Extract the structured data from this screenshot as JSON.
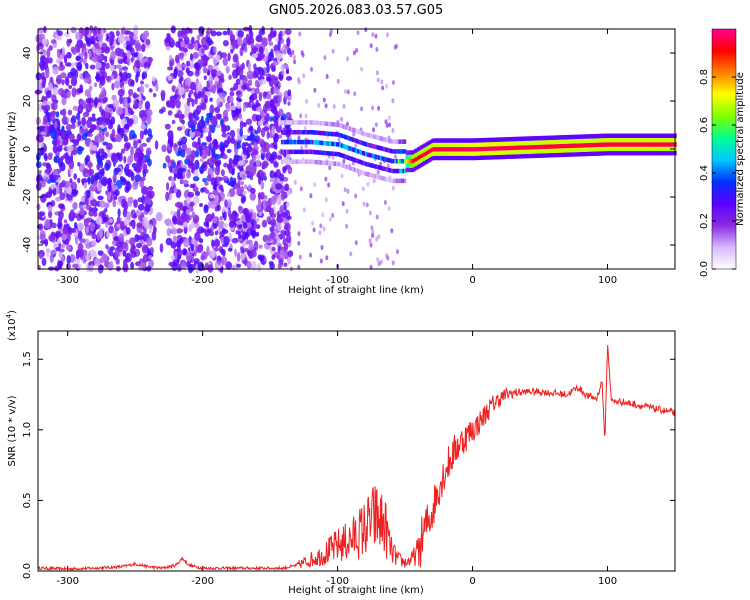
{
  "title": "GN05.2026.083.03.57.G05",
  "chart_data": [
    {
      "type": "heatmap",
      "title": "GN05.2026.083.03.57.G05",
      "xlabel": "Height of straight line (km)",
      "ylabel": "Frequency (Hz)",
      "xlim": [
        -322,
        150
      ],
      "ylim": [
        -50,
        50
      ],
      "xticks": [
        -300,
        -200,
        -100,
        0,
        100
      ],
      "xtick_labels": [
        "-300",
        "-200",
        "-100",
        "0",
        "100"
      ],
      "yticks": [
        -40,
        -20,
        0,
        20,
        40
      ],
      "ytick_labels": [
        "-40",
        "-20",
        "0",
        "20",
        "40"
      ],
      "colorbar": {
        "label": "Normalized spectral amplitude",
        "range": [
          0,
          1
        ],
        "ticks": [
          0.0,
          0.2,
          0.4,
          0.6,
          0.8
        ],
        "tick_labels": [
          "0.0",
          "0.2",
          "0.4",
          "0.6",
          "0.8"
        ],
        "colormap": [
          "#ffffff",
          "#d9b8ff",
          "#8a2be2",
          "#5a00ff",
          "#0030ff",
          "#00c8ff",
          "#00ff90",
          "#80ff00",
          "#ffff00",
          "#ff8000",
          "#ff0000",
          "#ff0090"
        ]
      },
      "ridge": [
        {
          "x": -140,
          "f": 3,
          "amp": 0.35
        },
        {
          "x": -120,
          "f": 3,
          "amp": 0.42
        },
        {
          "x": -100,
          "f": 2,
          "amp": 0.45
        },
        {
          "x": -80,
          "f": -2,
          "amp": 0.4
        },
        {
          "x": -60,
          "f": -5,
          "amp": 0.38
        },
        {
          "x": -45,
          "f": -5,
          "amp": 0.9
        },
        {
          "x": -30,
          "f": 0,
          "amp": 0.95
        },
        {
          "x": 0,
          "f": 0,
          "amp": 0.98
        },
        {
          "x": 50,
          "f": 1,
          "amp": 0.95
        },
        {
          "x": 100,
          "f": 2,
          "amp": 0.95
        },
        {
          "x": 150,
          "f": 2,
          "amp": 0.95
        }
      ]
    },
    {
      "type": "line",
      "xlabel": "Height of straight line (km)",
      "ylabel": "SNR (10 * v/v)",
      "y_multiplier": "(x10",
      "y_multiplier_exp": "4",
      "y_multiplier_close": ")",
      "xlim": [
        -322,
        150
      ],
      "ylim": [
        0,
        1.7
      ],
      "xticks": [
        -300,
        -200,
        -100,
        0,
        100
      ],
      "xtick_labels": [
        "-300",
        "-200",
        "-100",
        "0",
        "100"
      ],
      "yticks": [
        0.0,
        0.5,
        1.0,
        1.5
      ],
      "ytick_labels": [
        "0.0",
        "0.5",
        "1.0",
        "1.5"
      ],
      "color": "#ee2222",
      "series": [
        {
          "name": "SNR",
          "x": [
            -322,
            -300,
            -280,
            -260,
            -250,
            -240,
            -230,
            -220,
            -215,
            -210,
            -200,
            -180,
            -160,
            -140,
            -130,
            -120,
            -110,
            -100,
            -90,
            -80,
            -72,
            -65,
            -60,
            -55,
            -50,
            -45,
            -40,
            -35,
            -30,
            -25,
            -20,
            -15,
            -10,
            -5,
            0,
            5,
            10,
            15,
            20,
            25,
            30,
            40,
            50,
            60,
            70,
            78,
            85,
            92,
            96,
            98,
            100,
            103,
            110,
            120,
            130,
            140,
            150
          ],
          "y": [
            0.02,
            0.015,
            0.02,
            0.03,
            0.05,
            0.03,
            0.02,
            0.04,
            0.09,
            0.04,
            0.02,
            0.02,
            0.02,
            0.02,
            0.04,
            0.08,
            0.12,
            0.18,
            0.22,
            0.3,
            0.38,
            0.32,
            0.14,
            0.08,
            0.06,
            0.08,
            0.15,
            0.3,
            0.42,
            0.6,
            0.72,
            0.82,
            0.9,
            0.95,
            1.0,
            1.05,
            1.12,
            1.18,
            1.22,
            1.25,
            1.26,
            1.27,
            1.27,
            1.26,
            1.25,
            1.3,
            1.24,
            1.22,
            1.35,
            0.9,
            1.6,
            1.2,
            1.2,
            1.18,
            1.16,
            1.14,
            1.12
          ]
        }
      ]
    }
  ]
}
